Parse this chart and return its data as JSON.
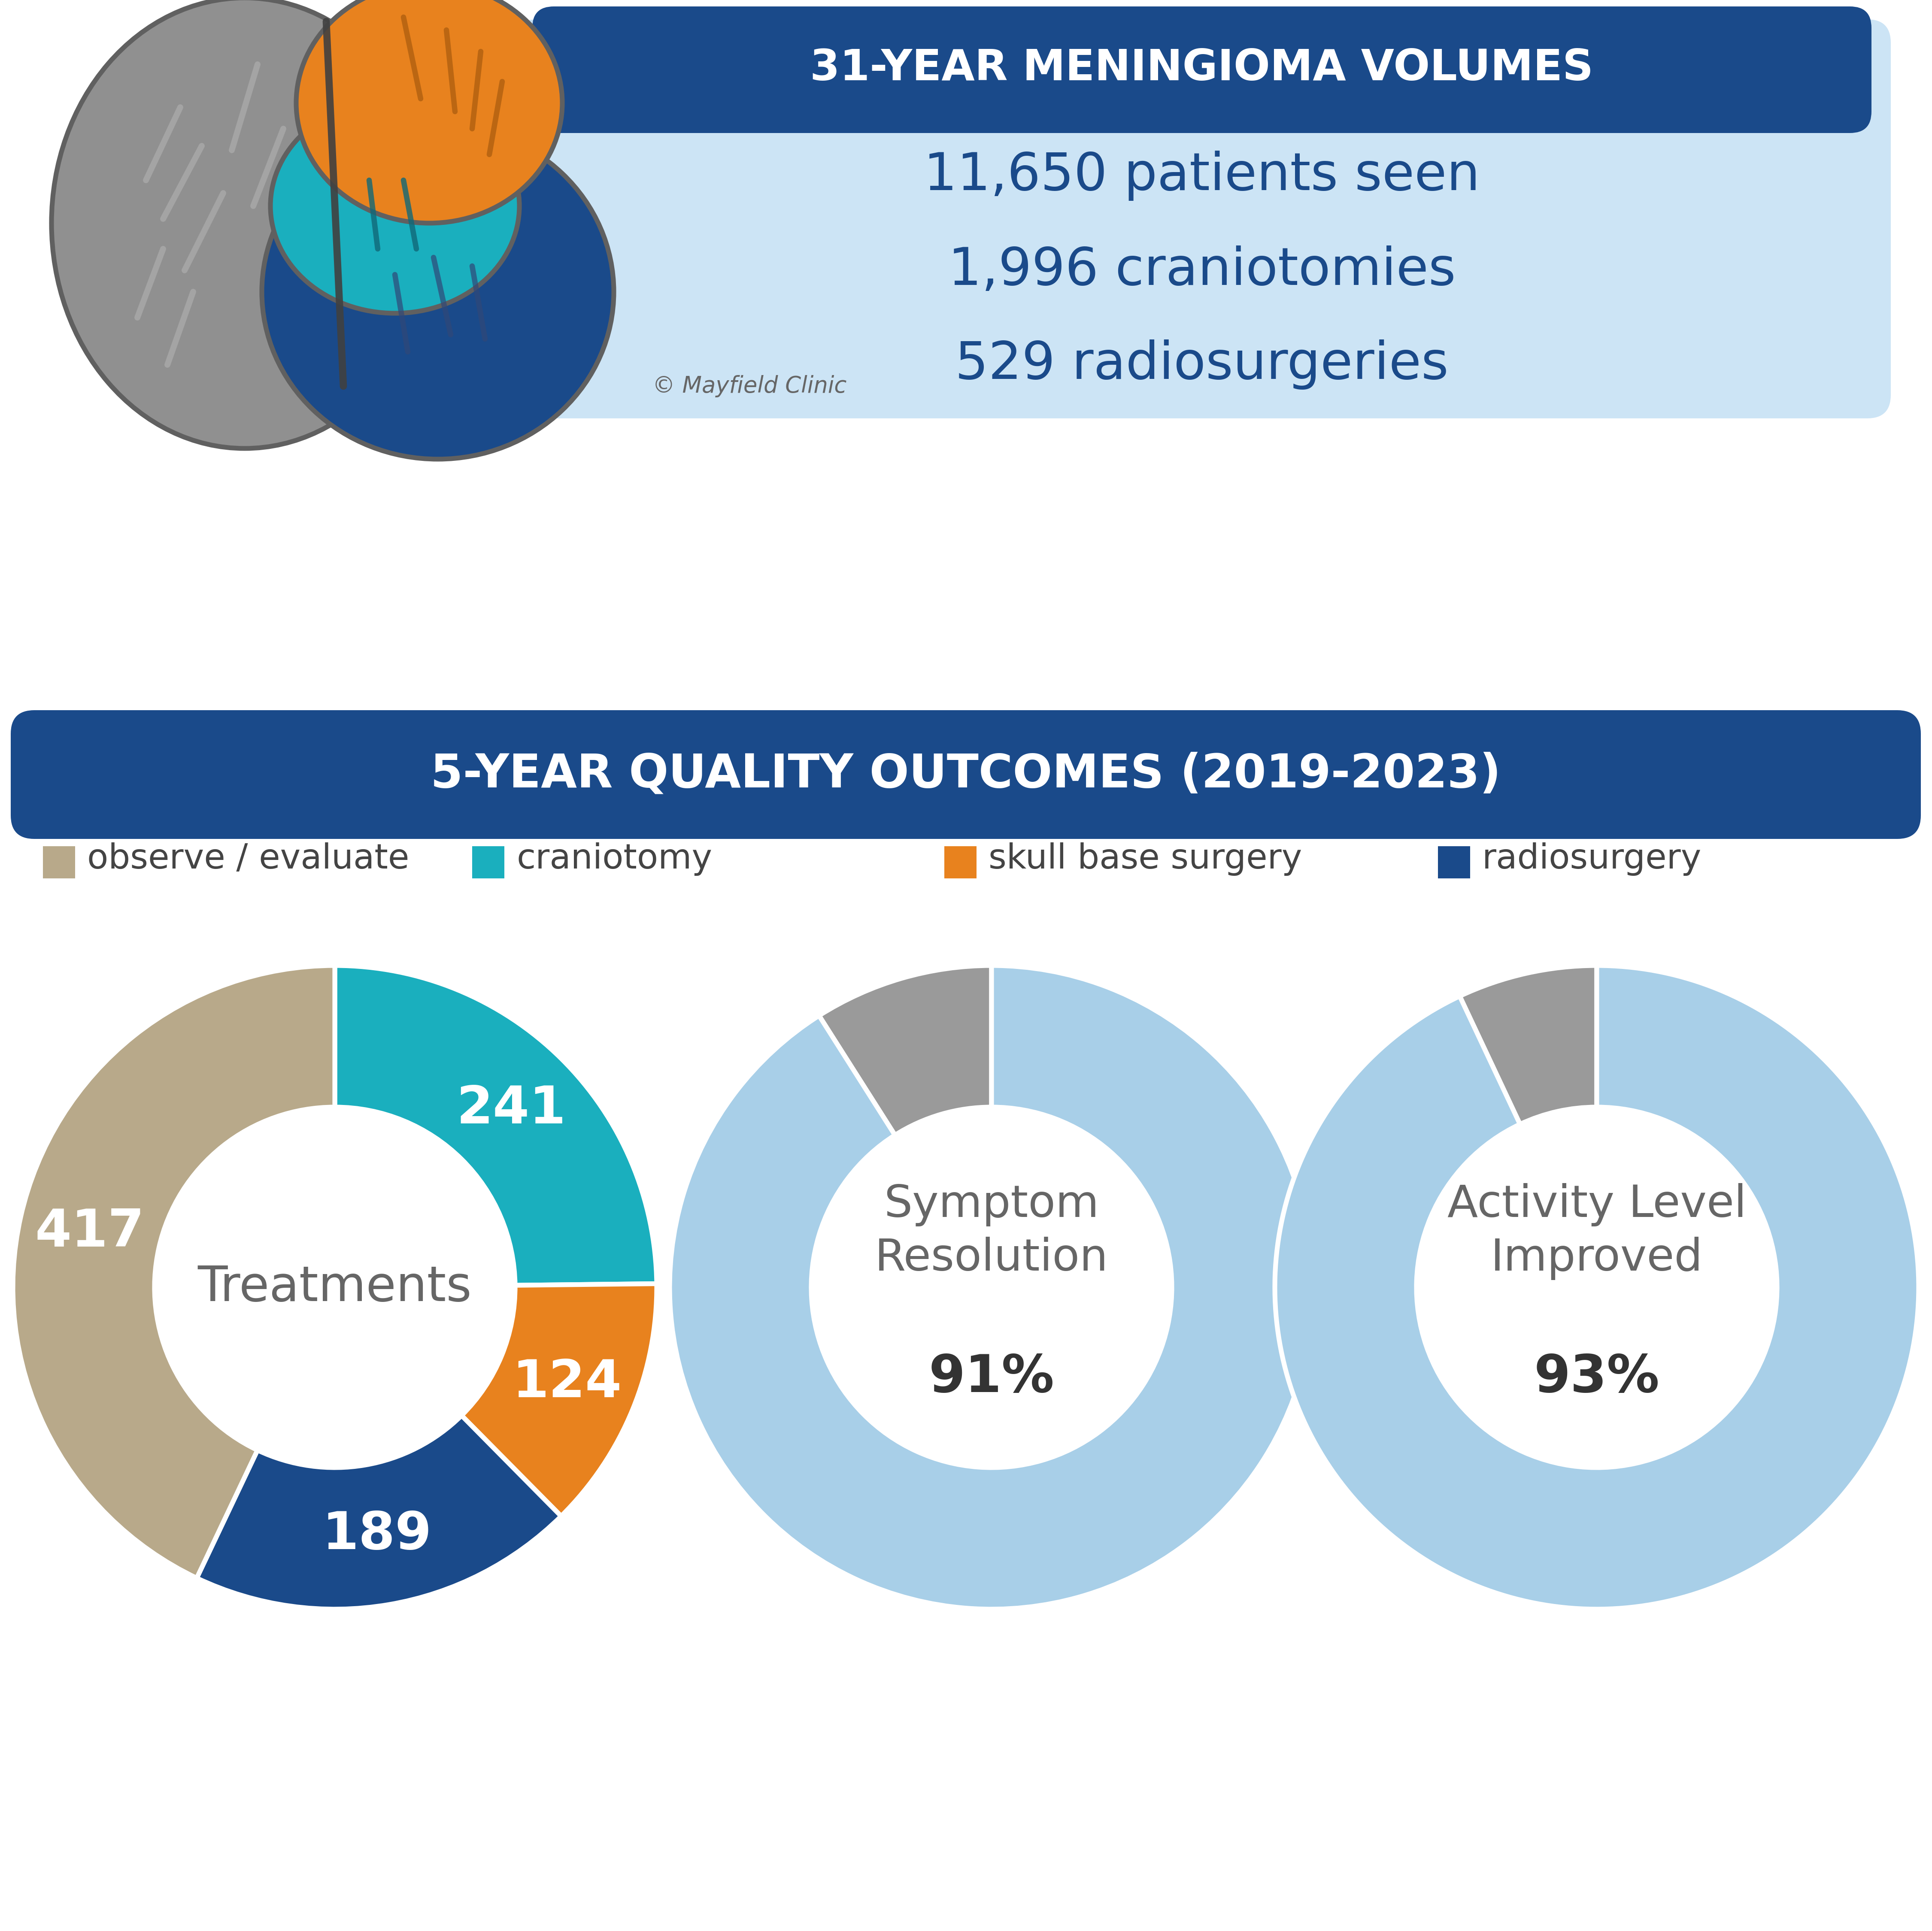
{
  "background_color": "#ffffff",
  "title_top": "31-YEAR MENINGIOMA VOLUMES",
  "title_top_bg": "#1a4a8a",
  "title_top_text_color": "#ffffff",
  "stats_box_bg": "#cce4f5",
  "stats": [
    "11,650 patients seen",
    "1,996 craniotomies",
    "529 radiosurgeries"
  ],
  "stats_color": "#1a4a8a",
  "copyright": "© Mayfield Clinic",
  "title_bottom": "5-YEAR QUALITY OUTCOMES (2019-2023)",
  "title_bottom_bg": "#1a4a8a",
  "title_bottom_text_color": "#ffffff",
  "legend_items": [
    {
      "label": "observe / evaluate",
      "color": "#b8a98a"
    },
    {
      "label": "craniotomy",
      "color": "#1aafbe"
    },
    {
      "label": "skull base surgery",
      "color": "#e8821e"
    },
    {
      "label": "radiosurgery",
      "color": "#1a4a8a"
    }
  ],
  "donut1": {
    "label": "Treatments",
    "slices": [
      417,
      241,
      124,
      189
    ],
    "colors": [
      "#b8a98a",
      "#1aafbe",
      "#e8821e",
      "#1a4a8a"
    ],
    "text_colors": [
      "#ffffff",
      "#ffffff",
      "#ffffff",
      "#ffffff"
    ]
  },
  "donut2": {
    "pct": 91,
    "color_main": "#a8cfe8",
    "color_other": "#9a9a9a",
    "label_normal": "Symptom\nResolution",
    "label_bold": "91%"
  },
  "donut3": {
    "pct": 93,
    "color_main": "#a8cfe8",
    "color_other": "#9a9a9a",
    "label_normal": "Activity Level\nImproved",
    "label_bold": "93%"
  },
  "brain": {
    "gray_color": "#909090",
    "orange_color": "#e8821e",
    "teal_color": "#1aafbe",
    "dark_blue_color": "#1a4a8a",
    "outline_color": "#606060",
    "sulci_gray": "#aaaaaa",
    "sulci_orange": "#b06010",
    "sulci_teal": "#106878"
  }
}
